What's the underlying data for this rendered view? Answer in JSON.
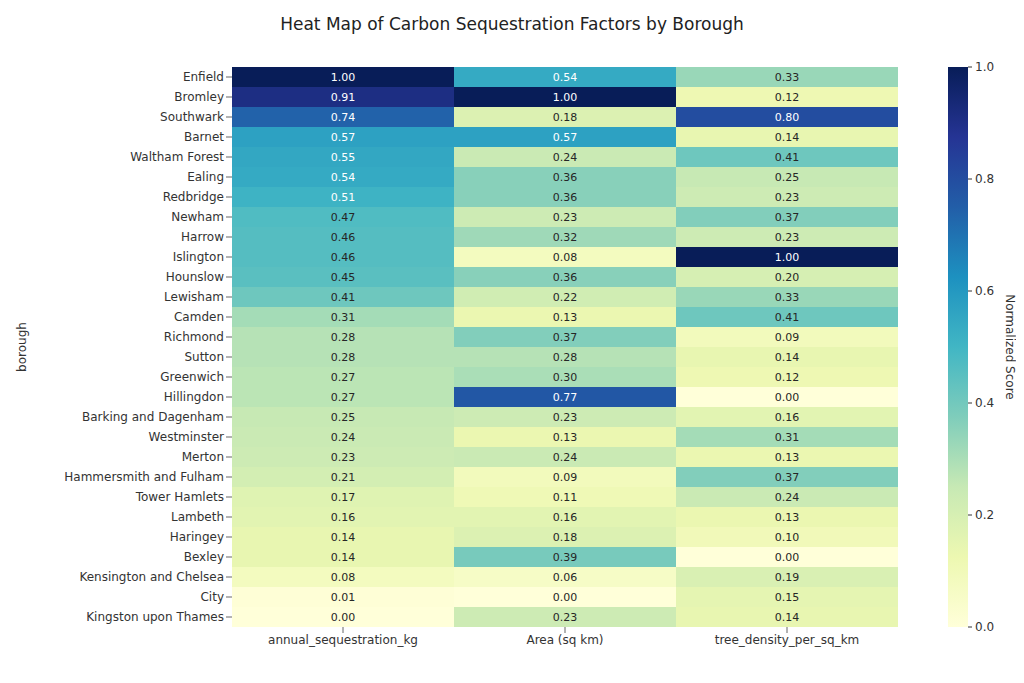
{
  "chart_data": {
    "type": "heatmap",
    "title": "Heat Map of Carbon Sequestration Factors by Borough",
    "y_label": "borough",
    "rows": [
      "Enfield",
      "Bromley",
      "Southwark",
      "Barnet",
      "Waltham Forest",
      "Ealing",
      "Redbridge",
      "Newham",
      "Harrow",
      "Islington",
      "Hounslow",
      "Lewisham",
      "Camden",
      "Richmond",
      "Sutton",
      "Greenwich",
      "Hillingdon",
      "Barking and Dagenham",
      "Westminster",
      "Merton",
      "Hammersmith and Fulham",
      "Tower Hamlets",
      "Lambeth",
      "Haringey",
      "Bexley",
      "Kensington and Chelsea",
      "City",
      "Kingston upon Thames"
    ],
    "columns": [
      "annual_sequestration_kg",
      "Area (sq km)",
      "tree_density_per_sq_km"
    ],
    "values": [
      [
        1.0,
        0.54,
        0.33
      ],
      [
        0.91,
        1.0,
        0.12
      ],
      [
        0.74,
        0.18,
        0.8
      ],
      [
        0.57,
        0.57,
        0.14
      ],
      [
        0.55,
        0.24,
        0.41
      ],
      [
        0.54,
        0.36,
        0.25
      ],
      [
        0.51,
        0.36,
        0.23
      ],
      [
        0.47,
        0.23,
        0.37
      ],
      [
        0.46,
        0.32,
        0.23
      ],
      [
        0.46,
        0.08,
        1.0
      ],
      [
        0.45,
        0.36,
        0.2
      ],
      [
        0.41,
        0.22,
        0.33
      ],
      [
        0.31,
        0.13,
        0.41
      ],
      [
        0.28,
        0.37,
        0.09
      ],
      [
        0.28,
        0.28,
        0.14
      ],
      [
        0.27,
        0.3,
        0.12
      ],
      [
        0.27,
        0.77,
        0.0
      ],
      [
        0.25,
        0.23,
        0.16
      ],
      [
        0.24,
        0.13,
        0.31
      ],
      [
        0.23,
        0.24,
        0.13
      ],
      [
        0.21,
        0.09,
        0.37
      ],
      [
        0.17,
        0.11,
        0.24
      ],
      [
        0.16,
        0.16,
        0.13
      ],
      [
        0.14,
        0.18,
        0.1
      ],
      [
        0.14,
        0.39,
        0.0
      ],
      [
        0.08,
        0.06,
        0.19
      ],
      [
        0.01,
        0.0,
        0.15
      ],
      [
        0.0,
        0.23,
        0.14
      ]
    ],
    "value_labels": [
      [
        "1.00",
        "0.54",
        "0.33"
      ],
      [
        "0.91",
        "1.00",
        "0.12"
      ],
      [
        "0.74",
        "0.18",
        "0.80"
      ],
      [
        "0.57",
        "0.57",
        "0.14"
      ],
      [
        "0.55",
        "0.24",
        "0.41"
      ],
      [
        "0.54",
        "0.36",
        "0.25"
      ],
      [
        "0.51",
        "0.36",
        "0.23"
      ],
      [
        "0.47",
        "0.23",
        "0.37"
      ],
      [
        "0.46",
        "0.32",
        "0.23"
      ],
      [
        "0.46",
        "0.08",
        "1.00"
      ],
      [
        "0.45",
        "0.36",
        "0.20"
      ],
      [
        "0.41",
        "0.22",
        "0.33"
      ],
      [
        "0.31",
        "0.13",
        "0.41"
      ],
      [
        "0.28",
        "0.37",
        "0.09"
      ],
      [
        "0.28",
        "0.28",
        "0.14"
      ],
      [
        "0.27",
        "0.30",
        "0.12"
      ],
      [
        "0.27",
        "0.77",
        "0.00"
      ],
      [
        "0.25",
        "0.23",
        "0.16"
      ],
      [
        "0.24",
        "0.13",
        "0.31"
      ],
      [
        "0.23",
        "0.24",
        "0.13"
      ],
      [
        "0.21",
        "0.09",
        "0.37"
      ],
      [
        "0.17",
        "0.11",
        "0.24"
      ],
      [
        "0.16",
        "0.16",
        "0.13"
      ],
      [
        "0.14",
        "0.18",
        "0.10"
      ],
      [
        "0.14",
        "0.39",
        "0.00"
      ],
      [
        "0.08",
        "0.06",
        "0.19"
      ],
      [
        "0.01",
        "0.00",
        "0.15"
      ],
      [
        "0.00",
        "0.23",
        "0.14"
      ]
    ],
    "data_labels": true,
    "colorbar": {
      "label": "Normalized Score",
      "range": [
        0,
        1
      ],
      "ticks": [
        {
          "value": 0,
          "label": "0.0"
        },
        0.2,
        0.4,
        0.6,
        0.8,
        {
          "value": 1,
          "label": "1.0"
        }
      ]
    }
  }
}
